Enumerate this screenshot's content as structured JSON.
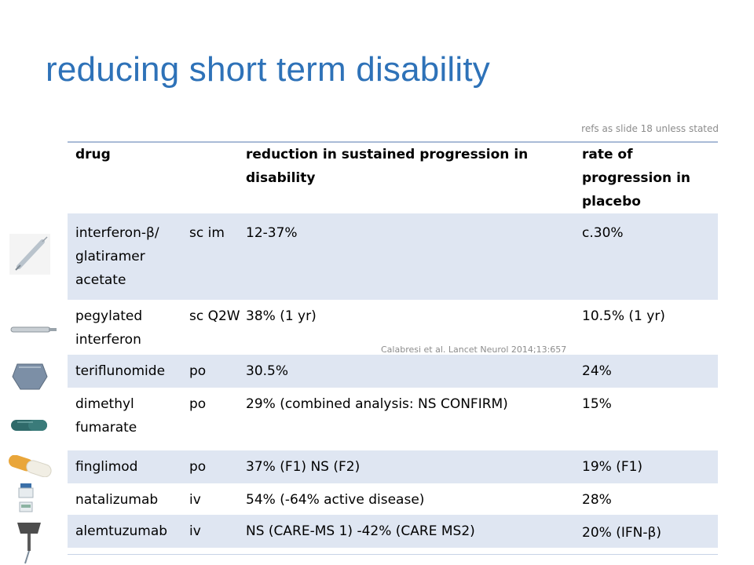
{
  "title": "reducing short term disability",
  "refs_note": "refs as slide 18 unless stated",
  "citation": "Calabresi et al. Lancet Neurol 2014;13:657",
  "table": {
    "headers": [
      "drug",
      "",
      "reduction in sustained progression in disability",
      "rate of progression in placebo"
    ],
    "rows": [
      {
        "drug": "interferon-β/ glatiramer acetate",
        "route": "sc im",
        "reduction": "12-37%",
        "placebo": "c.30%",
        "icon": "syringe-icon"
      },
      {
        "drug": "pegylated interferon",
        "route": "sc Q2W",
        "reduction": "38% (1 yr)",
        "placebo": "10.5% (1 yr)",
        "icon": "pen-injector-icon"
      },
      {
        "drug": "teriflunomide",
        "route": "po",
        "reduction": "30.5%",
        "placebo": "24%",
        "icon": "tablet-icon"
      },
      {
        "drug": "dimethyl fumarate",
        "route": "po",
        "reduction": "29% (combined analysis: NS CONFIRM)",
        "placebo": "15%",
        "icon": "capsule-icon"
      },
      {
        "drug": "finglimod",
        "route": "po",
        "reduction": "37% (F1) NS (F2)",
        "placebo": "19% (F1)",
        "icon": "capsule-icon"
      },
      {
        "drug": "natalizumab",
        "route": "iv",
        "reduction": "54% (-64% active disease)",
        "placebo": "28%",
        "icon": "vial-icon"
      },
      {
        "drug": "alemtuzumab",
        "route": "iv",
        "reduction": "NS (CARE-MS 1) -42% (CARE MS2)",
        "placebo": "20% (IFN-β)",
        "icon": "iv-bag-icon"
      }
    ]
  },
  "colors": {
    "title": "#2e72b8",
    "row_shade": "#dfe6f2",
    "rule": "#a9bbd6"
  }
}
